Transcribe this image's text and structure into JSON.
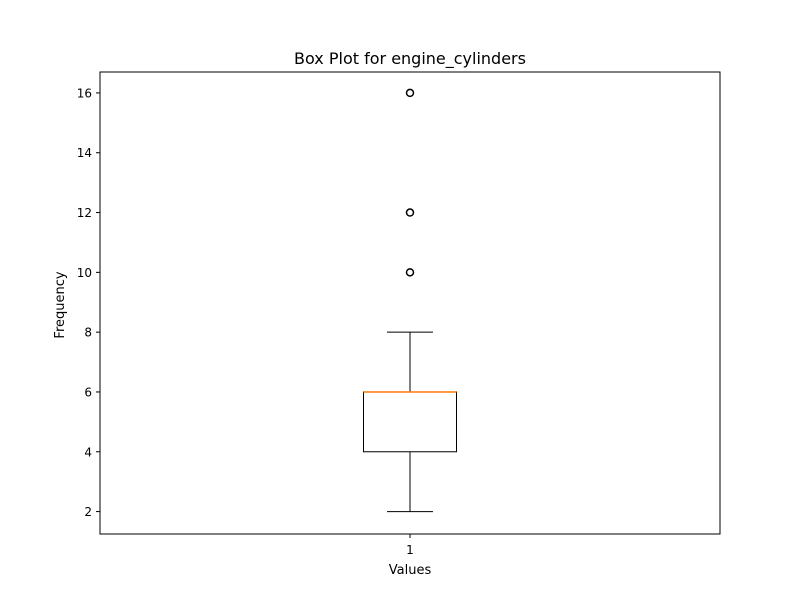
{
  "chart_data": {
    "type": "box",
    "title": "Box Plot for engine_cylinders",
    "xlabel": "Values",
    "ylabel": "Frequency",
    "categories": [
      "1"
    ],
    "ylim": [
      1.25,
      16.7
    ],
    "yticks": [
      2,
      4,
      6,
      8,
      10,
      12,
      14,
      16
    ],
    "ytick_labels": [
      "2",
      "4",
      "6",
      "8",
      "10",
      "12",
      "14",
      "16"
    ],
    "boxes": [
      {
        "label": "1",
        "whisker_low": 2,
        "q1": 4,
        "median": 6,
        "q3": 6,
        "whisker_high": 8,
        "outliers": [
          10,
          12,
          16
        ]
      }
    ],
    "grid": false,
    "colors": {
      "box": "#000000",
      "median": "#ff7f0e",
      "outlier": "#000000"
    }
  }
}
